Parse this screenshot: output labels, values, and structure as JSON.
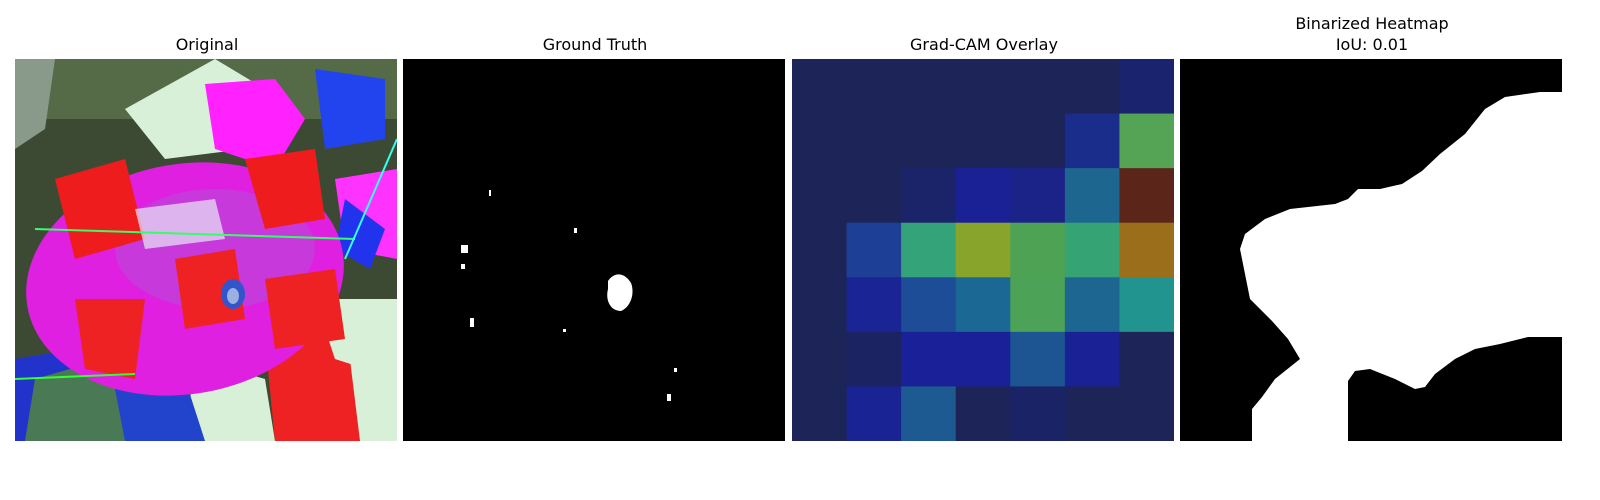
{
  "panels": {
    "original": {
      "title": "Original"
    },
    "ground_truth": {
      "title": "Ground Truth"
    },
    "gradcam": {
      "title": "Grad-CAM Overlay",
      "grid_rows": 7,
      "grid_cols": 7,
      "cells": [
        [
          "#1c2458",
          "#1c2458",
          "#1c2458",
          "#1c2458",
          "#1c2458",
          "#1c2458",
          "#19236e"
        ],
        [
          "#1c2458",
          "#1c2458",
          "#1c2458",
          "#1c2458",
          "#1c2458",
          "#1a2d8a",
          "#55a456"
        ],
        [
          "#1c2458",
          "#1c2458",
          "#1b2469",
          "#1a2195",
          "#1b2388",
          "#1c6690",
          "#5b2619"
        ],
        [
          "#1c2458",
          "#1d3f95",
          "#35a37a",
          "#89a42b",
          "#4ea254",
          "#36a374",
          "#9a6e1a"
        ],
        [
          "#1c2458",
          "#1a2495",
          "#1d4d96",
          "#1c6894",
          "#4ca257",
          "#1d6691",
          "#22948f"
        ],
        [
          "#1c2458",
          "#1b2363",
          "#1a2198",
          "#1a2198",
          "#1d5593",
          "#1a2194",
          "#1c2458"
        ],
        [
          "#1c2458",
          "#1a2393",
          "#1d5a91",
          "#1c2458",
          "#1b2367",
          "#1c2458",
          "#1c2458"
        ]
      ]
    },
    "binarized": {
      "title_line1": "Binarized Heatmap",
      "title_line2": "IoU: 0.01"
    }
  },
  "colors": {
    "mask_foreground": "#ffffff",
    "mask_background": "#000000"
  }
}
